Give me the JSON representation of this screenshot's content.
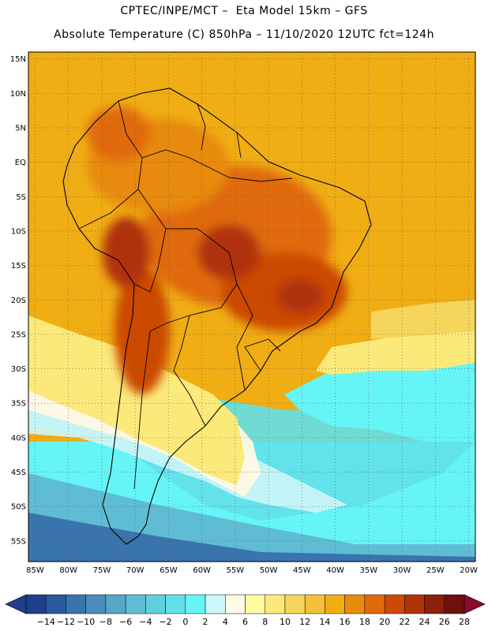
{
  "header": {
    "line1": "CPTEC/INPE/MCT –  Eta Model 15km – GFS",
    "line2": "Absolute Temperature (C) 850hPa – 11/10/2020 12UTC fct=124h"
  },
  "map": {
    "lat_labels": [
      "15N",
      "10N",
      "5N",
      "EQ",
      "5S",
      "10S",
      "15S",
      "20S",
      "25S",
      "30S",
      "35S",
      "40S",
      "45S",
      "50S",
      "55S"
    ],
    "lon_labels": [
      "85W",
      "80W",
      "75W",
      "70W",
      "65W",
      "60W",
      "55W",
      "50W",
      "45W",
      "40W",
      "35W",
      "30W",
      "25W",
      "20W"
    ],
    "lat_range": [
      -58,
      16
    ],
    "lon_range": [
      -86,
      -19
    ]
  },
  "colorbar": {
    "ticks": [
      "-14",
      "-12",
      "-10",
      "-8",
      "-6",
      "-4",
      "-2",
      "0",
      "2",
      "4",
      "6",
      "8",
      "10",
      "12",
      "14",
      "16",
      "18",
      "20",
      "22",
      "24",
      "26",
      "28"
    ],
    "colors": [
      "#1f3f8a",
      "#2a5a9c",
      "#3a74ac",
      "#4a8dbb",
      "#57a6c8",
      "#5ebdd4",
      "#60d0de",
      "#62e0e8",
      "#66f5f7",
      "#cdf6f8",
      "#fff8e4",
      "#fffca0",
      "#fbea7a",
      "#f6d55c",
      "#f3c13c",
      "#f0ad14",
      "#e88a0c",
      "#e06a0a",
      "#cc4a06",
      "#b03308",
      "#8e1f0c",
      "#6e100e"
    ]
  }
}
